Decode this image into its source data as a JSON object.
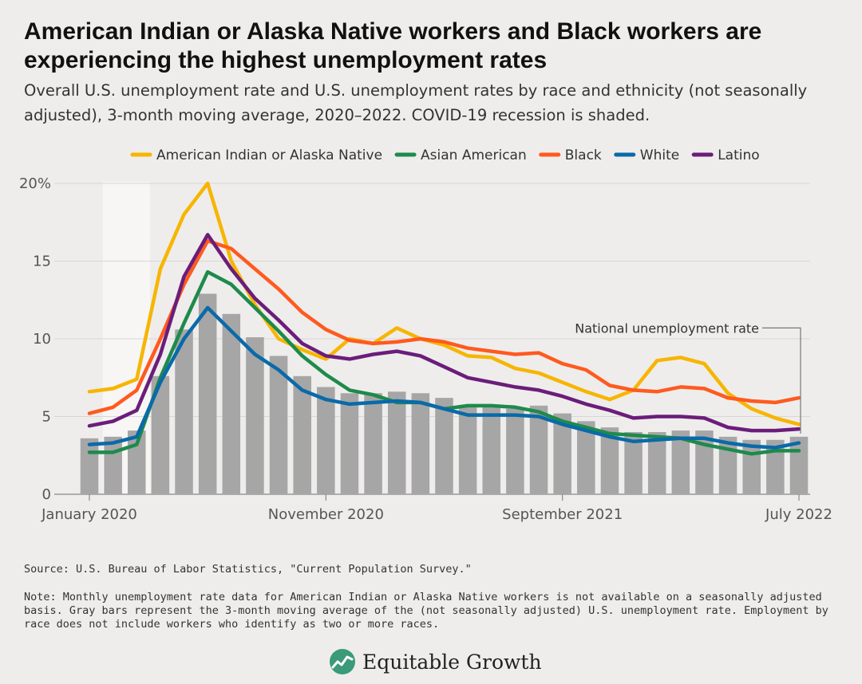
{
  "title": "American Indian or Alaska Native workers and Black workers are experiencing the highest unemployment rates",
  "subtitle": "Overall U.S. unemployment rate and U.S. unemployment rates by race and ethnicity (not seasonally adjusted), 3-month moving average, 2020–2022. COVID-19 recession is shaded.",
  "source": "Source: U.S. Bureau of Labor Statistics, \"Current Population Survey.\"",
  "note": "Note: Monthly unemployment rate data for American Indian or Alaska Native workers is not available on a seasonally adjusted basis. Gray bars represent the 3-month moving average of the (not seasonally adjusted) U.S. unemployment rate. Employment by race does not include workers who identify as two or more races.",
  "brand": {
    "name": "Equitable Growth",
    "logo_icon": "equitable-growth-logo-icon",
    "logo_color": "#3a9a7a"
  },
  "chart_data": {
    "type": "line",
    "months": [
      "Jan 2020",
      "Feb 2020",
      "Mar 2020",
      "Apr 2020",
      "May 2020",
      "Jun 2020",
      "Jul 2020",
      "Aug 2020",
      "Sep 2020",
      "Oct 2020",
      "Nov 2020",
      "Dec 2020",
      "Jan 2021",
      "Feb 2021",
      "Mar 2021",
      "Apr 2021",
      "May 2021",
      "Jun 2021",
      "Jul 2021",
      "Aug 2021",
      "Sep 2021",
      "Oct 2021",
      "Nov 2021",
      "Dec 2021",
      "Jan 2022",
      "Feb 2022",
      "Mar 2022",
      "Apr 2022",
      "May 2022",
      "Jun 2022",
      "Jul 2022"
    ],
    "x_tick_labels": [
      {
        "index": 0,
        "label": "January 2020"
      },
      {
        "index": 10,
        "label": "November 2020"
      },
      {
        "index": 20,
        "label": "September 2021"
      },
      {
        "index": 30,
        "label": "July 2022"
      }
    ],
    "y_ticks": [
      0,
      5,
      10,
      15,
      20
    ],
    "y_tick_labels": [
      "0",
      "5",
      "10",
      "15",
      "20%"
    ],
    "ylim": [
      0,
      20
    ],
    "grid": true,
    "legend_position": "top",
    "recession_shading": {
      "from_index": 1,
      "to_index": 3,
      "color": "#f7f6f5"
    },
    "bars": {
      "color": "#a6a6a6",
      "values": [
        3.6,
        3.7,
        4.1,
        7.6,
        10.6,
        12.9,
        11.6,
        10.1,
        8.9,
        7.6,
        6.9,
        6.5,
        6.5,
        6.6,
        6.5,
        6.2,
        5.6,
        5.6,
        5.5,
        5.7,
        5.2,
        4.7,
        4.3,
        4.0,
        4.0,
        4.1,
        4.1,
        3.7,
        3.5,
        3.5,
        3.7
      ]
    },
    "series": [
      {
        "name": "American Indian or Alaska Native",
        "color": "#f7b500",
        "values": [
          6.6,
          6.8,
          7.4,
          14.5,
          18.0,
          20.0,
          15.0,
          12.2,
          10.0,
          9.3,
          8.7,
          10.0,
          9.7,
          10.7,
          10.0,
          9.6,
          8.9,
          8.8,
          8.1,
          7.8,
          7.2,
          6.6,
          6.1,
          6.7,
          8.6,
          8.8,
          8.4,
          6.5,
          5.5,
          4.9,
          4.5
        ]
      },
      {
        "name": "Asian American",
        "color": "#1e8a4c",
        "values": [
          2.7,
          2.7,
          3.2,
          7.5,
          11.0,
          14.3,
          13.5,
          12.0,
          10.5,
          8.9,
          7.7,
          6.7,
          6.4,
          5.9,
          5.9,
          5.5,
          5.7,
          5.7,
          5.6,
          5.3,
          4.7,
          4.3,
          3.9,
          3.8,
          3.7,
          3.6,
          3.2,
          2.9,
          2.6,
          2.8,
          2.8
        ]
      },
      {
        "name": "Black",
        "color": "#ff5a1f",
        "values": [
          5.2,
          5.6,
          6.7,
          10.0,
          13.5,
          16.3,
          15.8,
          14.5,
          13.2,
          11.7,
          10.6,
          9.9,
          9.7,
          9.8,
          10.0,
          9.8,
          9.4,
          9.2,
          9.0,
          9.1,
          8.4,
          8.0,
          7.0,
          6.7,
          6.6,
          6.9,
          6.8,
          6.2,
          6.0,
          5.9,
          6.2
        ]
      },
      {
        "name": "White",
        "color": "#0a6aa8",
        "values": [
          3.2,
          3.3,
          3.7,
          7.2,
          10.0,
          12.0,
          10.5,
          9.0,
          8.0,
          6.7,
          6.1,
          5.8,
          5.9,
          6.0,
          5.9,
          5.5,
          5.1,
          5.1,
          5.1,
          5.0,
          4.5,
          4.1,
          3.7,
          3.4,
          3.5,
          3.6,
          3.6,
          3.3,
          3.1,
          3.0,
          3.3
        ]
      },
      {
        "name": "Latino",
        "color": "#6b1d7a",
        "values": [
          4.4,
          4.7,
          5.4,
          9.0,
          14.0,
          16.7,
          14.5,
          12.6,
          11.2,
          9.7,
          8.9,
          8.7,
          9.0,
          9.2,
          8.9,
          8.2,
          7.5,
          7.2,
          6.9,
          6.7,
          6.3,
          5.8,
          5.4,
          4.9,
          5.0,
          5.0,
          4.9,
          4.3,
          4.1,
          4.1,
          4.2
        ]
      }
    ],
    "annotation": {
      "text": "National unemployment rate",
      "target_index": 30
    }
  }
}
